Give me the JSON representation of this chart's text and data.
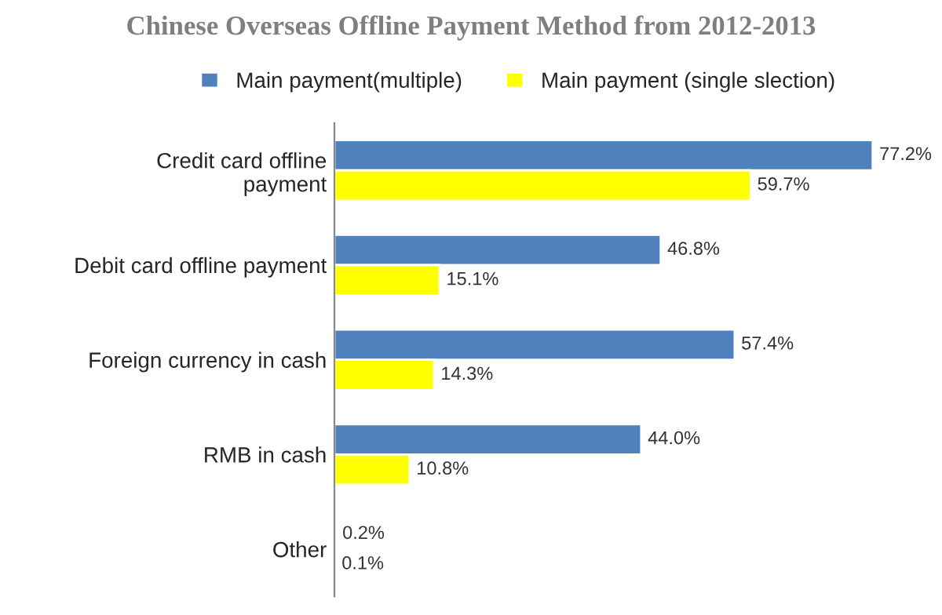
{
  "chart_data": {
    "type": "bar",
    "orientation": "horizontal",
    "title": "Chinese Overseas Offline Payment Method from 2012-2013",
    "categories": [
      "Credit card offline\npayment",
      "Debit card offline payment",
      "Foreign currency in cash",
      "RMB in cash",
      "Other"
    ],
    "series": [
      {
        "name": "Main payment(multiple)",
        "color": "#4f81bd",
        "values": [
          77.2,
          46.8,
          57.4,
          44.0,
          0.2
        ],
        "value_labels": [
          "77.2%",
          "46.8%",
          "57.4%",
          "44.0%",
          "0.2%"
        ]
      },
      {
        "name": "Main payment (single slection)",
        "color": "#ffff00",
        "values": [
          59.7,
          15.1,
          14.3,
          10.8,
          0.1
        ],
        "value_labels": [
          "59.7%",
          "15.1%",
          "14.3%",
          "10.8%",
          "0.1%"
        ]
      }
    ],
    "tick_labels": "y",
    "legend": "top",
    "grid": false
  }
}
